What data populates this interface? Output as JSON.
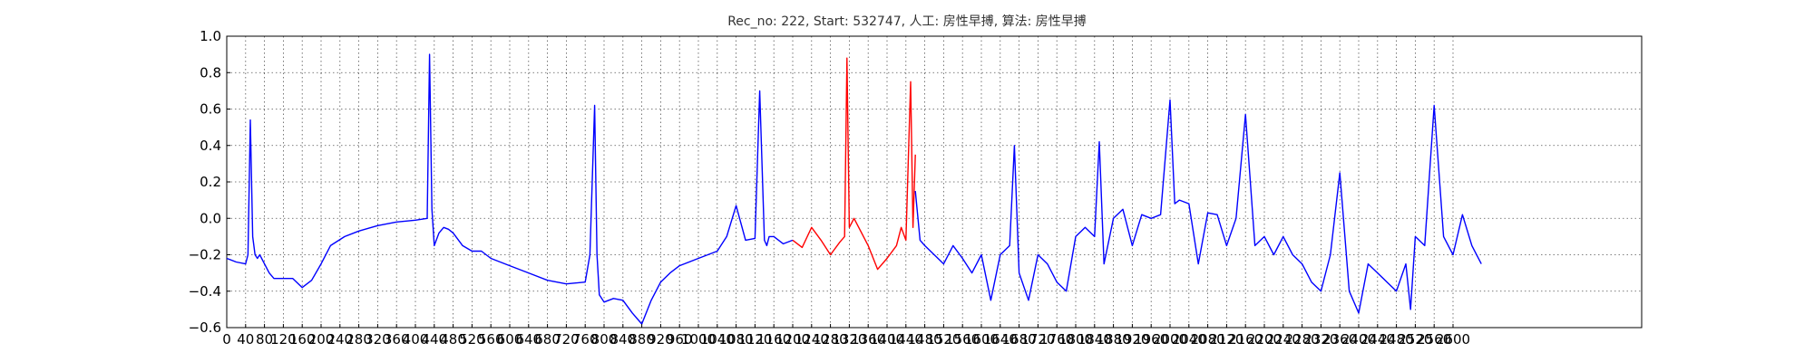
{
  "chart_data": {
    "type": "line",
    "title": "Rec_no: 222, Start: 532747, 人工: 房性早搏, 算法: 房性早搏",
    "xlabel": "",
    "ylabel": "",
    "xlim": [
      0,
      3000
    ],
    "ylim": [
      -0.6,
      1.0
    ],
    "grid": true,
    "colors": {
      "normal": "#0000ff",
      "highlight": "#ff0000"
    },
    "x_ticks": [
      0,
      40,
      80,
      120,
      160,
      200,
      240,
      280,
      320,
      360,
      400,
      440,
      480,
      520,
      560,
      600,
      640,
      680,
      720,
      760,
      800,
      840,
      880,
      920,
      960,
      1000,
      1040,
      1080,
      1120,
      1160,
      1200,
      1240,
      1280,
      1320,
      1360,
      1400,
      1440,
      1480,
      1520,
      1560,
      1600,
      1640,
      1680,
      1720,
      1760,
      1800,
      1840,
      1880,
      1920,
      1960,
      2000,
      2040,
      2080,
      2120,
      2160,
      2200,
      2240,
      2280,
      2320,
      2360,
      2400,
      2440,
      2480,
      2520,
      2560,
      2600
    ],
    "x_tick_labels": [
      "0",
      "40",
      "80",
      "120",
      "160",
      "200",
      "240",
      "280",
      "320",
      "360",
      "400",
      "440",
      "480",
      "520",
      "560",
      "600",
      "640",
      "680",
      "720",
      "760",
      "800",
      "840",
      "880",
      "920",
      "960",
      "1000",
      "1040",
      "1080",
      "1120",
      "1160",
      "1200",
      "1240",
      "1280",
      "1320",
      "1360",
      "1400",
      "1440",
      "1480",
      "1520",
      "1560",
      "1600",
      "1640",
      "1680",
      "1720",
      "1760",
      "1800",
      "1840",
      "1880",
      "1920",
      "1960",
      "2000",
      "2040",
      "2080",
      "2120",
      "2160",
      "2200",
      "2240",
      "2280",
      "2320",
      "2360",
      "2400",
      "2440",
      "2480",
      "2520",
      "2560",
      "2600"
    ],
    "y_ticks": [
      1.0,
      0.8,
      0.6,
      0.4,
      0.2,
      0.0,
      -0.2,
      -0.4,
      -0.6
    ],
    "y_tick_labels": [
      "1.0",
      "0.8",
      "0.6",
      "0.4",
      "0.2",
      "0.0",
      "−0.2",
      "−0.4",
      "−0.6"
    ],
    "series": [
      {
        "color": "#0000ff",
        "x": [
          0,
          20,
          40,
          45,
          50,
          55,
          60,
          65,
          70,
          80,
          90,
          100,
          120,
          140,
          160,
          180,
          200,
          220,
          250,
          280,
          320,
          360,
          400,
          425,
          430,
          435,
          440,
          450,
          460,
          470,
          480,
          500,
          520,
          540,
          560,
          600,
          640,
          680,
          720,
          760,
          770,
          780,
          785,
          790,
          800,
          820,
          840,
          860,
          880,
          900,
          920,
          940,
          960,
          1000,
          1040,
          1060,
          1080,
          1100,
          1120,
          1130,
          1140,
          1145,
          1150,
          1160,
          1180,
          1200
        ],
        "y": [
          -0.22,
          -0.24,
          -0.25,
          -0.2,
          0.54,
          -0.1,
          -0.2,
          -0.22,
          -0.2,
          -0.25,
          -0.3,
          -0.33,
          -0.33,
          -0.33,
          -0.38,
          -0.34,
          -0.25,
          -0.15,
          -0.1,
          -0.07,
          -0.04,
          -0.02,
          -0.01,
          0.0,
          0.9,
          0.05,
          -0.15,
          -0.08,
          -0.05,
          -0.06,
          -0.08,
          -0.15,
          -0.18,
          -0.18,
          -0.22,
          -0.26,
          -0.3,
          -0.34,
          -0.36,
          -0.35,
          -0.2,
          0.62,
          -0.2,
          -0.42,
          -0.46,
          -0.44,
          -0.45,
          -0.52,
          -0.58,
          -0.45,
          -0.35,
          -0.3,
          -0.26,
          -0.22,
          -0.18,
          -0.1,
          0.07,
          -0.12,
          -0.11,
          0.7,
          -0.12,
          -0.15,
          -0.1,
          -0.1,
          -0.14,
          -0.12
        ]
      },
      {
        "color": "#ff0000",
        "x": [
          1200,
          1220,
          1240,
          1260,
          1280,
          1300,
          1310,
          1315,
          1320,
          1330,
          1340,
          1360,
          1380,
          1400,
          1420,
          1430,
          1440,
          1450,
          1455,
          1460
        ],
        "y": [
          -0.12,
          -0.16,
          -0.05,
          -0.12,
          -0.2,
          -0.13,
          -0.1,
          0.88,
          -0.05,
          0.0,
          -0.05,
          -0.15,
          -0.28,
          -0.22,
          -0.15,
          -0.05,
          -0.12,
          0.75,
          -0.05,
          0.35
        ]
      },
      {
        "color": "#0000ff",
        "x": [
          1460,
          1470,
          1480,
          1500,
          1520,
          1540,
          1560,
          1580,
          1600,
          1620,
          1640,
          1660,
          1670,
          1680,
          1700,
          1720,
          1740,
          1760,
          1780,
          1800,
          1820,
          1840,
          1850,
          1860,
          1880,
          1900,
          1920,
          1940,
          1960,
          1980,
          2000,
          2010,
          2020,
          2040,
          2060,
          2080,
          2100,
          2120,
          2140,
          2160,
          2180,
          2200,
          2220,
          2240,
          2260,
          2280,
          2300,
          2320,
          2340,
          2360,
          2380,
          2400,
          2420,
          2440,
          2460,
          2480,
          2500,
          2510,
          2520,
          2540,
          2560,
          2580,
          2600,
          2620,
          2640,
          2660
        ],
        "y": [
          0.15,
          -0.12,
          -0.15,
          -0.2,
          -0.25,
          -0.15,
          -0.22,
          -0.3,
          -0.2,
          -0.45,
          -0.2,
          -0.15,
          0.4,
          -0.3,
          -0.45,
          -0.2,
          -0.25,
          -0.35,
          -0.4,
          -0.1,
          -0.05,
          -0.1,
          0.42,
          -0.25,
          0.0,
          0.05,
          -0.15,
          0.02,
          0.0,
          0.02,
          0.65,
          0.08,
          0.1,
          0.08,
          -0.25,
          0.03,
          0.02,
          -0.15,
          0.0,
          0.57,
          -0.15,
          -0.1,
          -0.2,
          -0.1,
          -0.2,
          -0.25,
          -0.35,
          -0.4,
          -0.2,
          0.25,
          -0.4,
          -0.52,
          -0.25,
          -0.3,
          -0.35,
          -0.4,
          -0.25,
          -0.5,
          -0.1,
          -0.15,
          0.62,
          -0.1,
          -0.2,
          0.02,
          -0.15,
          -0.25
        ]
      }
    ]
  }
}
